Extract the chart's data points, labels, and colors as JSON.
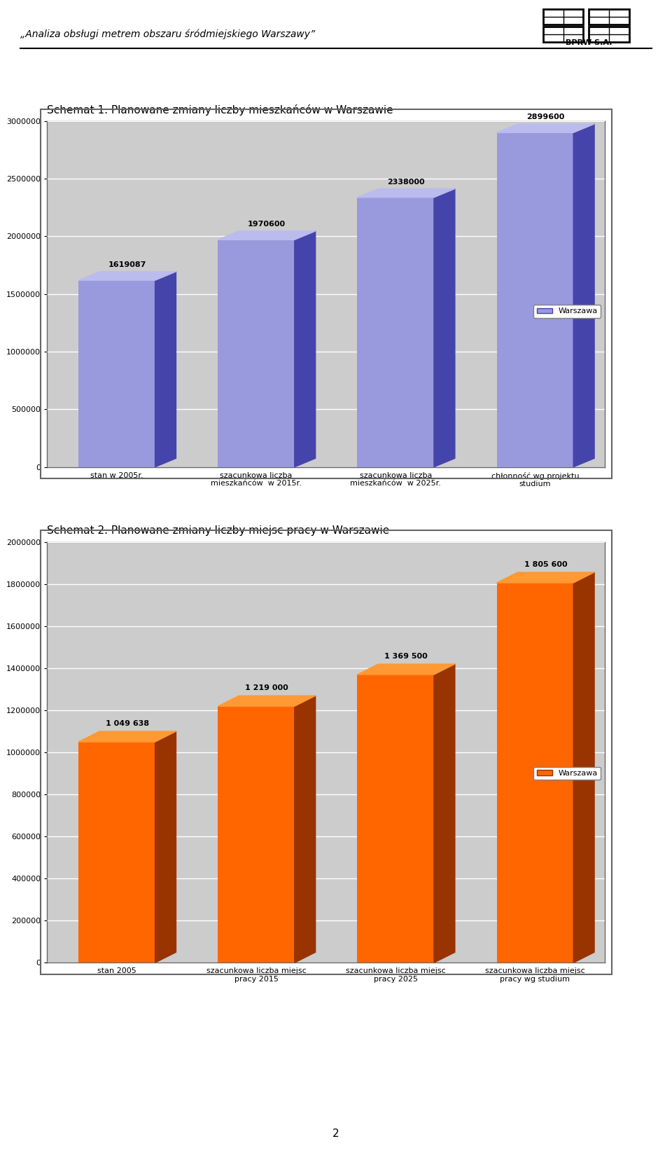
{
  "header_text": "„Analiza obsługi metrem obszaru śródmiejskiego Warszawy”",
  "chart1_title": "Schemat 1. Planowane zmiany liczby mieszkańców w Warszawie",
  "chart1_categories": [
    "stan w 2005r.",
    "szacunkowa liczba\nmieszkańców  w 2015r.",
    "szacunkowa liczba\nmieszkańców  w 2025r.",
    "chłonność wg projektu\nstudium"
  ],
  "chart1_values": [
    1619087,
    1970600,
    2338000,
    2899600
  ],
  "chart1_bar_color_face": "#9999dd",
  "chart1_bar_color_side": "#4444aa",
  "chart1_bar_color_top": "#bbbbee",
  "chart1_legend_label": "Warszawa",
  "chart1_ylim": [
    0,
    3000000
  ],
  "chart1_yticks": [
    0,
    500000,
    1000000,
    1500000,
    2000000,
    2500000,
    3000000
  ],
  "chart2_title": "Schemat 2. Planowane zmiany liczby miejsc pracy w Warszawie",
  "chart2_categories": [
    "stan 2005",
    "szacunkowa liczba miejsc\npracy 2015",
    "szacunkowa liczba miejsc\npracy 2025",
    "szacunkowa liczba miejsc\npracy wg studium"
  ],
  "chart2_values": [
    1049638,
    1219000,
    1369500,
    1805600
  ],
  "chart2_bar_color_face": "#ff6600",
  "chart2_bar_color_side": "#993300",
  "chart2_bar_color_top": "#ff9933",
  "chart2_legend_label": "Warszawa",
  "chart2_ylim": [
    0,
    2000000
  ],
  "chart2_yticks": [
    0,
    200000,
    400000,
    600000,
    800000,
    1000000,
    1200000,
    1400000,
    1600000,
    1800000,
    2000000
  ],
  "page_number": "2",
  "bg_color": "#ffffff",
  "chart_bg_light": "#cccccc",
  "chart_bg_dark": "#aaaaaa",
  "floor_color": "#999999",
  "wall_color": "#bbbbbb",
  "grid_color": "#aaaaaa",
  "border_color": "#666666"
}
